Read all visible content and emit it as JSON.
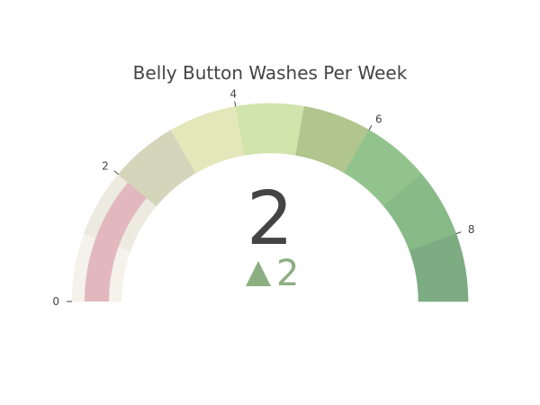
{
  "chart_data": {
    "type": "gauge",
    "title": "Belly Button Washes Per Week",
    "value": 2,
    "delta": {
      "value": 2,
      "direction": "increasing",
      "color": "#8CAF82"
    },
    "range": [
      0,
      9
    ],
    "tick_values": [
      0,
      2,
      4,
      6,
      8
    ],
    "tick_labels": [
      "0",
      "2",
      "4",
      "6",
      "8"
    ],
    "bar": {
      "value": 2,
      "color": "#E2B8BE"
    },
    "steps": [
      {
        "range": [
          0,
          1
        ],
        "color": "#F4F2EA"
      },
      {
        "range": [
          1,
          2
        ],
        "color": "#EDEBE0"
      },
      {
        "range": [
          2,
          3
        ],
        "color": "#D5D5BB"
      },
      {
        "range": [
          3,
          4
        ],
        "color": "#E4E7BA"
      },
      {
        "range": [
          4,
          5
        ],
        "color": "#D1E4AC"
      },
      {
        "range": [
          5,
          6
        ],
        "color": "#B1C58F"
      },
      {
        "range": [
          6,
          7
        ],
        "color": "#93C38C"
      },
      {
        "range": [
          7,
          8
        ],
        "color": "#88BA88"
      },
      {
        "range": [
          8,
          9
        ],
        "color": "#7DAB82"
      }
    ]
  }
}
